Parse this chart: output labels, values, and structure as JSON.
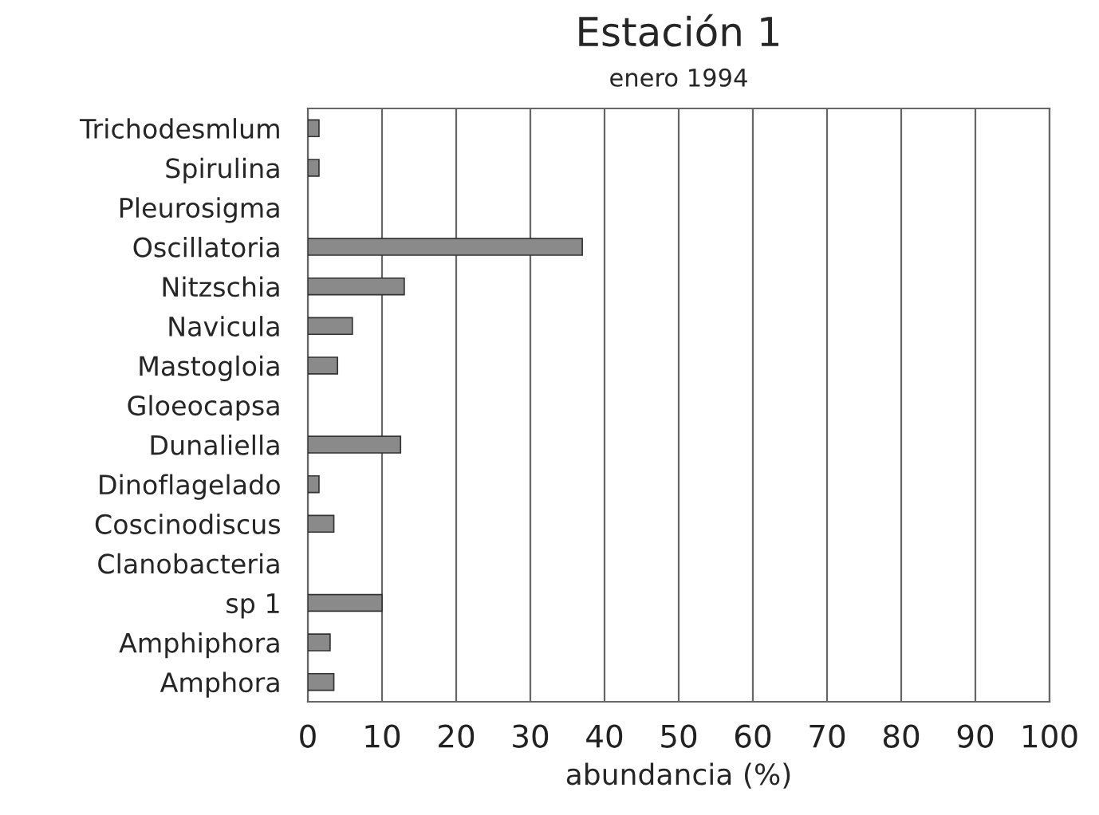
{
  "chart_data": {
    "type": "bar",
    "orientation": "horizontal",
    "title": "Estación 1",
    "subtitle": "enero 1994",
    "xlabel": "abundancia (%)",
    "categories": [
      "Trichodesmlum",
      "Spirulina",
      "Pleurosigma",
      "Oscillatoria",
      "Nitzschia",
      "Navicula",
      "Mastogloia",
      "Gloeocapsa",
      "Dunaliella",
      "Dinoflagelado",
      "Coscinodiscus",
      "Clanobacteria",
      "sp 1",
      "Amphiphora",
      "Amphora"
    ],
    "values": [
      1.5,
      1.5,
      0,
      37,
      13,
      6,
      4,
      0,
      12.5,
      1.5,
      3.5,
      0,
      10,
      3,
      3.5
    ],
    "color": "#8a8a8a",
    "xlim": [
      0,
      100
    ],
    "xticks": [
      0,
      10,
      20,
      30,
      40,
      50,
      60,
      70,
      80,
      90,
      100
    ],
    "grid": "x"
  }
}
